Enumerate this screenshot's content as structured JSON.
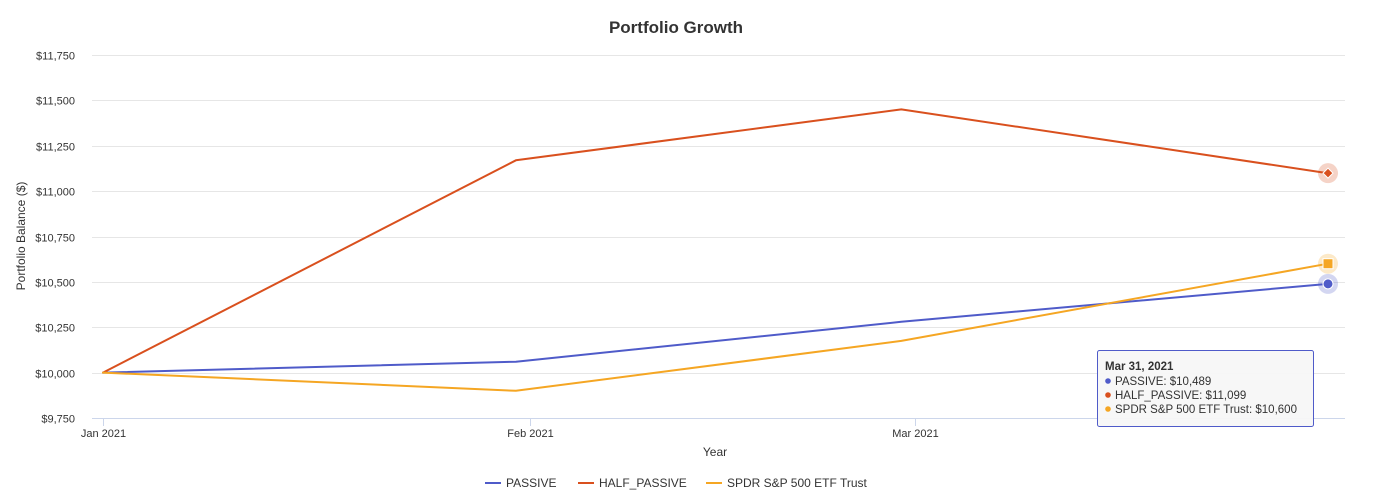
{
  "chart_data": {
    "type": "line",
    "title": "Portfolio Growth",
    "xlabel": "Year",
    "ylabel": "Portfolio Balance ($)",
    "x": [
      "2021-01-01",
      "2021-01-31",
      "2021-02-28",
      "2021-03-31"
    ],
    "x_ticks": [
      {
        "date": "2021-01-01",
        "label": "Jan 2021"
      },
      {
        "date": "2021-02-01",
        "label": "Feb 2021"
      },
      {
        "date": "2021-03-01",
        "label": "Mar 2021"
      }
    ],
    "y_ticks": [
      9750,
      10000,
      10250,
      10500,
      10750,
      11000,
      11250,
      11500,
      11750
    ],
    "y_tick_labels": [
      "$9,750",
      "$10,000",
      "$10,250",
      "$10,500",
      "$10,750",
      "$11,000",
      "$11,250",
      "$11,500",
      "$11,750"
    ],
    "ylim": [
      9750,
      11750
    ],
    "grid": true,
    "legend_position": "bottom",
    "series": [
      {
        "name": "PASSIVE",
        "color": "#4F5BC9",
        "marker": "circle",
        "values": [
          10000,
          10060,
          10280,
          10489
        ]
      },
      {
        "name": "HALF_PASSIVE",
        "color": "#D9501E",
        "marker": "diamond",
        "values": [
          10000,
          11170,
          11450,
          11099
        ]
      },
      {
        "name": "SPDR S&P 500 ETF Trust",
        "color": "#F5A623",
        "marker": "square",
        "values": [
          10000,
          9900,
          10175,
          10600
        ]
      }
    ],
    "tooltip": {
      "header": "Mar 31, 2021",
      "lines": [
        "PASSIVE: $10,489",
        "HALF_PASSIVE: $11,099",
        "SPDR S&P 500 ETF Trust: $10,600"
      ]
    }
  }
}
